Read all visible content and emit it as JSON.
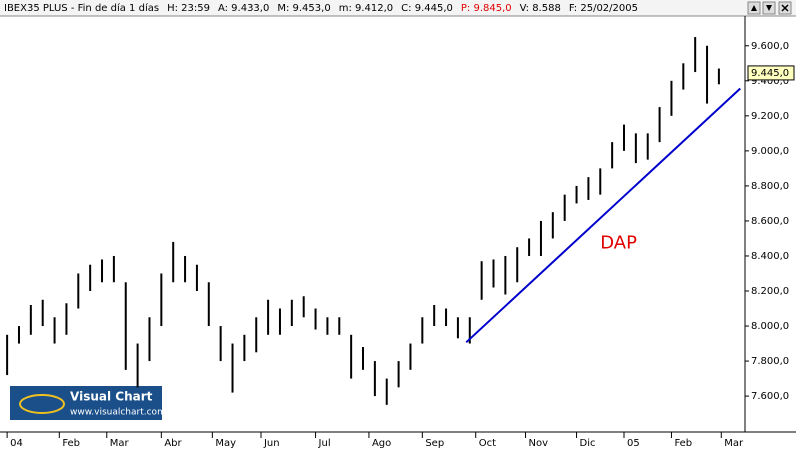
{
  "chart_data": {
    "type": "range",
    "header": [
      "IBEX35 PLUS - Fin de día 1 días",
      "H: 23:59",
      "A: 9.433,0",
      "M: 9.453,0",
      "m: 9.412,0",
      "C: 9.445,0",
      "P: 9.845,0",
      "V: 8.588",
      "F: 25/02/2005"
    ],
    "header_highlight": 6,
    "header_highlight_color": "#e00000",
    "x": [
      0,
      1,
      2,
      3,
      4,
      5,
      6,
      7,
      8,
      9,
      10,
      11,
      12,
      13,
      14,
      15,
      16,
      17,
      18,
      19,
      20,
      21,
      22,
      23,
      24,
      25,
      26,
      27,
      28,
      29,
      30,
      31,
      32,
      33,
      34,
      35,
      36,
      37,
      38,
      39,
      40,
      41,
      42,
      43,
      44,
      45,
      46,
      47,
      48,
      49,
      50,
      51,
      52,
      53,
      54,
      55,
      56,
      57,
      58,
      59,
      60
    ],
    "high": [
      7950,
      8000,
      8120,
      8150,
      8050,
      8130,
      8300,
      8350,
      8380,
      8400,
      8250,
      7900,
      8050,
      8300,
      8480,
      8400,
      8350,
      8250,
      8000,
      7900,
      7950,
      8050,
      8150,
      8100,
      8150,
      8170,
      8100,
      8050,
      8050,
      7950,
      7880,
      7800,
      7700,
      7800,
      7900,
      8050,
      8120,
      8100,
      8050,
      8050,
      8370,
      8380,
      8400,
      8450,
      8500,
      8600,
      8650,
      8750,
      8800,
      8850,
      8900,
      9050,
      9150,
      9100,
      9100,
      9250,
      9400,
      9500,
      9650,
      9600,
      9470
    ],
    "low": [
      7720,
      7900,
      7950,
      8000,
      7900,
      7950,
      8100,
      8200,
      8250,
      8250,
      7750,
      7650,
      7800,
      8000,
      8250,
      8250,
      8200,
      8000,
      7800,
      7620,
      7800,
      7850,
      7950,
      7950,
      8000,
      8050,
      7980,
      7950,
      7950,
      7700,
      7750,
      7600,
      7550,
      7650,
      7750,
      7900,
      8000,
      8000,
      7930,
      7900,
      8150,
      8220,
      8180,
      8250,
      8400,
      8400,
      8500,
      8600,
      8700,
      8720,
      8750,
      8900,
      9000,
      8930,
      8950,
      9050,
      9200,
      9350,
      9450,
      9270,
      9380
    ],
    "color": "#000000",
    "xlim": [
      -0.6,
      62.2
    ],
    "ylim": [
      7395,
      9770
    ],
    "xticks": [
      {
        "value": 0,
        "label": "04"
      },
      {
        "value": 4.4,
        "label": "Feb"
      },
      {
        "value": 8.4,
        "label": "Mar"
      },
      {
        "value": 13,
        "label": "Abr"
      },
      {
        "value": 17.3,
        "label": "May"
      },
      {
        "value": 21.4,
        "label": "Jun"
      },
      {
        "value": 26,
        "label": "Jul"
      },
      {
        "value": 30.5,
        "label": "Ago"
      },
      {
        "value": 35,
        "label": "Sep"
      },
      {
        "value": 39.5,
        "label": "Oct"
      },
      {
        "value": 43.7,
        "label": "Nov"
      },
      {
        "value": 48,
        "label": "Dic"
      },
      {
        "value": 52,
        "label": "05"
      },
      {
        "value": 56,
        "label": "Feb"
      },
      {
        "value": 60.2,
        "label": "Mar"
      }
    ],
    "yticks": [
      {
        "value": 7600,
        "label": "7.600,0"
      },
      {
        "value": 7800,
        "label": "7.800,0"
      },
      {
        "value": 8000,
        "label": "8.000,0"
      },
      {
        "value": 8200,
        "label": "8.200,0"
      },
      {
        "value": 8400,
        "label": "8.400,0"
      },
      {
        "value": 8600,
        "label": "8.600,0"
      },
      {
        "value": 8800,
        "label": "8.800,0"
      },
      {
        "value": 9000,
        "label": "9.000,0"
      },
      {
        "value": 9200,
        "label": "9.200,0"
      },
      {
        "value": 9400,
        "label": "9.400,0"
      },
      {
        "value": 9600,
        "label": "9.600,0"
      }
    ],
    "last": {
      "value": 9445,
      "label": "9.445,0"
    },
    "trendline": {
      "x": [
        38.7,
        61.8
      ],
      "y": [
        7907,
        9356
      ],
      "color": "#0000cc",
      "label": "DAP",
      "label_x": 50,
      "label_y": 8470,
      "label_color": "#e00000"
    },
    "logo": {
      "title": "Visual Chart",
      "url": "www.visualchart.com"
    }
  }
}
